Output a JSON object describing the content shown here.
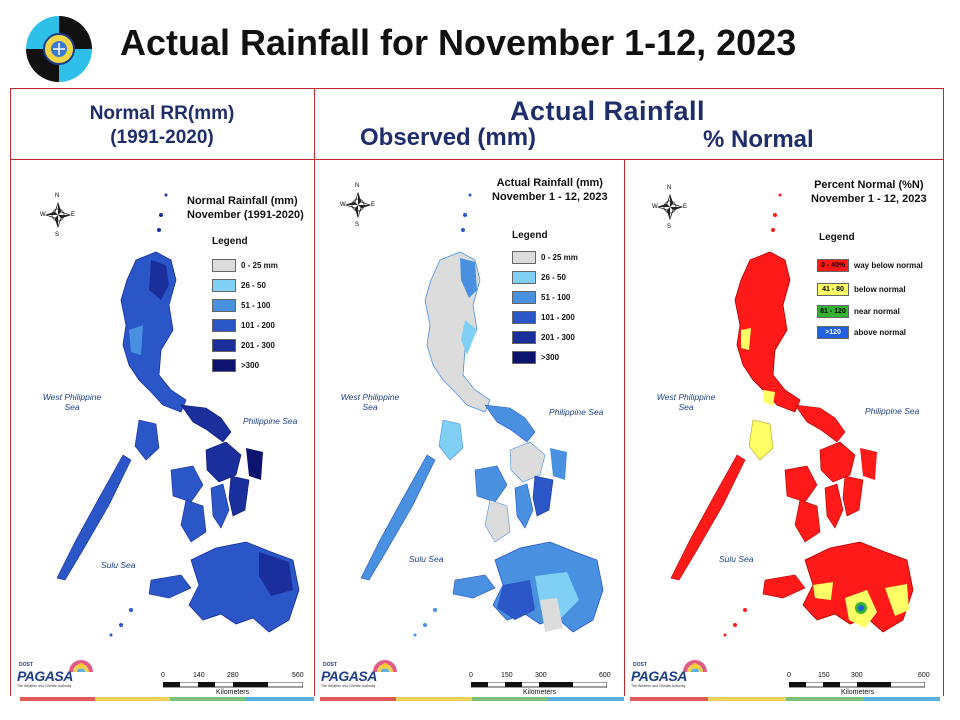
{
  "title": "Actual Rainfall for November 1-12, 2023",
  "headers": {
    "normal_line1": "Normal RR(mm)",
    "normal_line2": "(1991-2020)",
    "actual": "Actual Rainfall",
    "observed": "Observed (mm)",
    "percent": "% Normal"
  },
  "maps": [
    {
      "title_line1": "Normal Rainfall (mm)",
      "title_line2": "November (1991-2020)",
      "legend_title": "Legend",
      "legend": [
        {
          "label": "0 - 25 mm",
          "color": "#dcdcdc",
          "range": ""
        },
        {
          "label": "26 - 50",
          "color": "#7fd0f4",
          "range": ""
        },
        {
          "label": "51 - 100",
          "color": "#4a90e0",
          "range": ""
        },
        {
          "label": "101 - 200",
          "color": "#2a56c8",
          "range": ""
        },
        {
          "label": "201 - 300",
          "color": "#1a2f9c",
          "range": ""
        },
        {
          "label": ">300",
          "color": "#0d1470",
          "range": ""
        }
      ],
      "seas": {
        "west": "West Philippine Sea",
        "east": "Philippine Sea",
        "sulu": "Sulu Sea"
      },
      "scale": {
        "ticks": [
          "0",
          "140",
          "280",
          "560"
        ],
        "unit": "Kilometers"
      }
    },
    {
      "title_line1": "Actual Rainfall (mm)",
      "title_line2": "November 1 - 12, 2023",
      "legend_title": "Legend",
      "legend": [
        {
          "label": "0 - 25 mm",
          "color": "#dcdcdc",
          "range": ""
        },
        {
          "label": "26 - 50",
          "color": "#7fd0f4",
          "range": ""
        },
        {
          "label": "51 - 100",
          "color": "#4a90e0",
          "range": ""
        },
        {
          "label": "101 - 200",
          "color": "#2a56c8",
          "range": ""
        },
        {
          "label": "201 - 300",
          "color": "#1a2f9c",
          "range": ""
        },
        {
          "label": ">300",
          "color": "#0d1470",
          "range": ""
        }
      ],
      "seas": {
        "west": "West Philippine Sea",
        "east": "Philippine Sea",
        "sulu": "Sulu Sea"
      },
      "scale": {
        "ticks": [
          "0",
          "150",
          "300",
          "600"
        ],
        "unit": "Kilometers"
      }
    },
    {
      "title_line1": "Percent Normal (%N)",
      "title_line2": "November 1 - 12, 2023",
      "legend_title": "Legend",
      "legend": [
        {
          "label": "way below normal",
          "color": "#ff1a1a",
          "range": "0 - 40%"
        },
        {
          "label": "below normal",
          "color": "#ffff66",
          "range": "41 - 80"
        },
        {
          "label": "near normal",
          "color": "#33b233",
          "range": "81 - 120"
        },
        {
          "label": "above normal",
          "color": "#1f5fe0",
          "range": ">120"
        }
      ],
      "seas": {
        "west": "West Philippine Sea",
        "east": "Philippine Sea",
        "sulu": "Sulu Sea"
      },
      "scale": {
        "ticks": [
          "0",
          "150",
          "300",
          "600"
        ],
        "unit": "Kilometers"
      }
    }
  ],
  "compass": {
    "n": "N",
    "s": "S",
    "e": "E",
    "w": "W"
  },
  "pagasa": {
    "brand": "PAGASA",
    "prefix": "DOST",
    "tagline": "The Weather and Climate Authority"
  },
  "colors": {
    "title": "#111111",
    "header": "#1f2d6b",
    "frame": "#c0282d",
    "bottom_bar": [
      "#e05a5a",
      "#f0d25a",
      "#7ac07a",
      "#5ab0e0"
    ]
  }
}
